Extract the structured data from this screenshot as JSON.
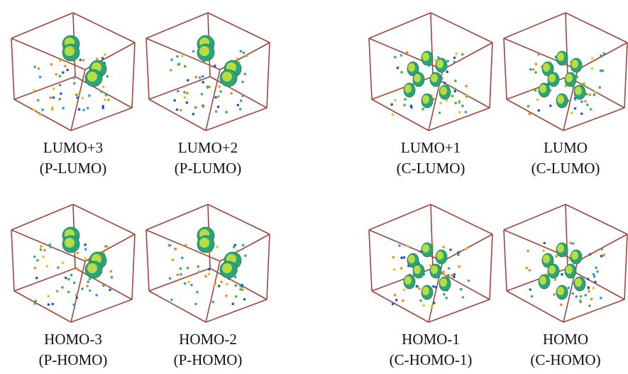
{
  "panels": [
    {
      "line1": "LUMO+3",
      "line2": "(P-LUMO)"
    },
    {
      "line1": "LUMO+2",
      "line2": "(P-LUMO)"
    },
    {
      "line1": "LUMO+1",
      "line2": "(C-LUMO)"
    },
    {
      "line1": "LUMO",
      "line2": "(C-LUMO)"
    },
    {
      "line1": "HOMO-3",
      "line2": "(P-HOMO)"
    },
    {
      "line1": "HOMO-2",
      "line2": "(P-HOMO)"
    },
    {
      "line1": "HOMO-1",
      "line2": "(C-HOMO-1)"
    },
    {
      "line1": "HOMO",
      "line2": "(C-HOMO)"
    }
  ]
}
